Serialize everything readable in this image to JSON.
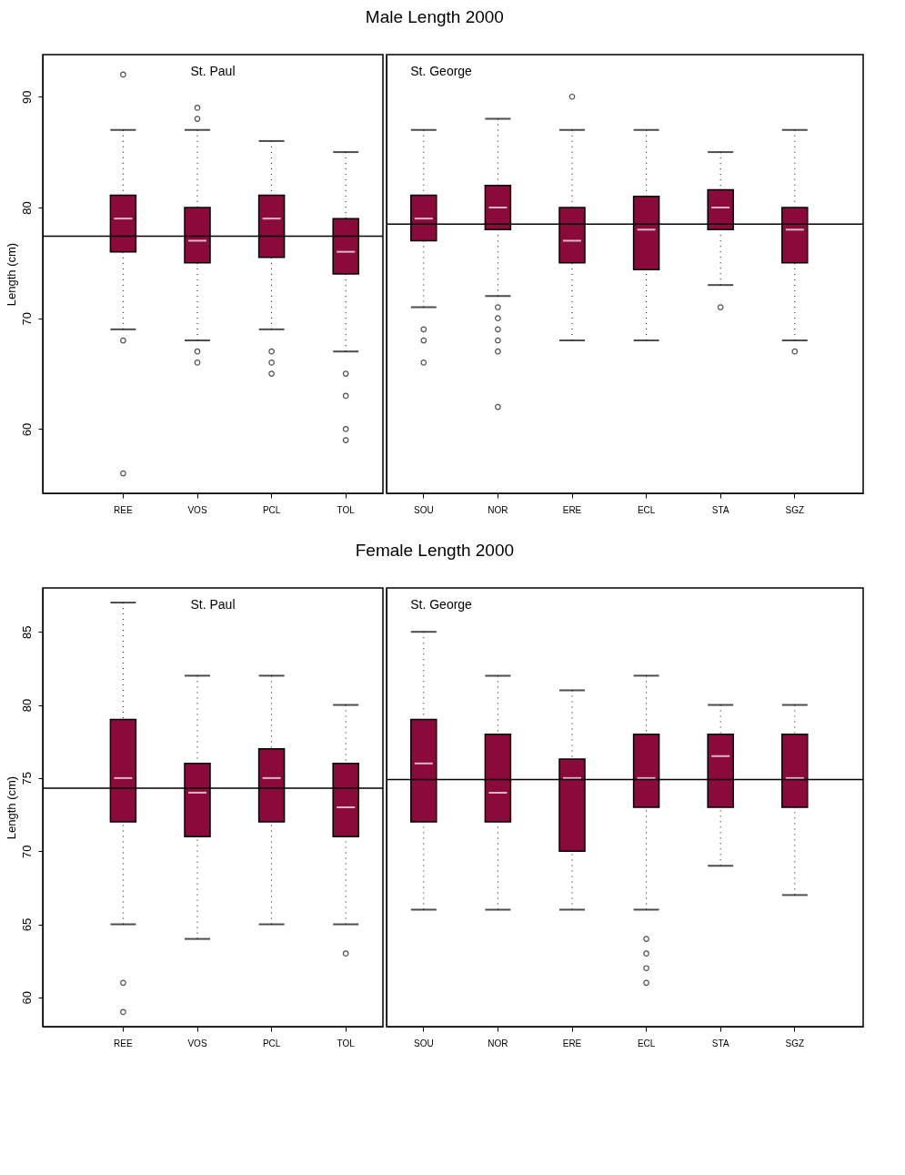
{
  "chart_data": [
    {
      "type": "box",
      "ylabel": "Length (cm)",
      "annotations": [
        "St. Paul"
      ],
      "categories": [
        "REE",
        "VOS",
        "PCL",
        "TOL"
      ],
      "ylim": [
        54.2,
        93.8
      ],
      "yticks": [
        60,
        70,
        80,
        90
      ],
      "grid": false,
      "legend": false,
      "ref_lines": [
        {
          "axis": "y",
          "value": 77.4
        }
      ],
      "series": [
        {
          "color": "#8b0a3c",
          "boxes": [
            {
              "low": 69,
              "q1": 76,
              "median": 79,
              "q3": 81.1,
              "high": 87,
              "outliers": [
                92,
                68,
                56
              ]
            },
            {
              "low": 68,
              "q1": 75,
              "median": 77,
              "q3": 80,
              "high": 87,
              "outliers": [
                89,
                88,
                67,
                66
              ]
            },
            {
              "low": 69,
              "q1": 75.5,
              "median": 79,
              "q3": 81.1,
              "high": 86,
              "outliers": [
                67,
                66,
                65
              ]
            },
            {
              "low": 67,
              "q1": 74,
              "median": 76,
              "q3": 79,
              "high": 85,
              "outliers": [
                65,
                63,
                60,
                59
              ]
            }
          ]
        }
      ]
    },
    {
      "type": "box",
      "title": "Male Length 2000",
      "annotations": [
        "St. George"
      ],
      "categories": [
        "SOU",
        "NOR",
        "ERE",
        "ECL",
        "STA",
        "SGZ"
      ],
      "ylim": [
        54.2,
        93.8
      ],
      "tick_labels": "x",
      "grid": false,
      "legend": false,
      "ref_lines": [
        {
          "axis": "y",
          "value": 78.5
        }
      ],
      "series": [
        {
          "color": "#8b0a3c",
          "boxes": [
            {
              "low": 71,
              "q1": 77,
              "median": 79,
              "q3": 81.1,
              "high": 87,
              "outliers": [
                69,
                68,
                66
              ]
            },
            {
              "low": 72,
              "q1": 78,
              "median": 80,
              "q3": 82,
              "high": 88,
              "outliers": [
                71,
                70,
                69,
                68,
                67,
                62
              ]
            },
            {
              "low": 68,
              "q1": 75,
              "median": 77,
              "q3": 80,
              "high": 87,
              "outliers": [
                90
              ]
            },
            {
              "low": 68,
              "q1": 74.4,
              "median": 78,
              "q3": 81,
              "high": 87
            },
            {
              "low": 73,
              "q1": 78,
              "median": 80,
              "q3": 81.6,
              "high": 85,
              "outliers": [
                71
              ]
            },
            {
              "low": 68,
              "q1": 75,
              "median": 78,
              "q3": 80,
              "high": 87,
              "outliers": [
                67
              ]
            }
          ]
        }
      ]
    },
    {
      "type": "box",
      "ylabel": "Length (cm)",
      "annotations": [
        "St. Paul"
      ],
      "categories": [
        "REE",
        "VOS",
        "PCL",
        "TOL"
      ],
      "ylim": [
        58,
        88
      ],
      "yticks": [
        60,
        65,
        70,
        75,
        80,
        85
      ],
      "grid": false,
      "legend": false,
      "ref_lines": [
        {
          "axis": "y",
          "value": 74.3
        }
      ],
      "series": [
        {
          "color": "#8b0a3c",
          "boxes": [
            {
              "low": 65,
              "q1": 72,
              "median": 75,
              "q3": 79,
              "high": 87,
              "outliers": [
                61,
                59
              ]
            },
            {
              "low": 64,
              "q1": 71,
              "median": 74,
              "q3": 76,
              "high": 82
            },
            {
              "low": 65,
              "q1": 72,
              "median": 75,
              "q3": 77,
              "high": 82
            },
            {
              "low": 65,
              "q1": 71,
              "median": 73,
              "q3": 76,
              "high": 80,
              "outliers": [
                63
              ]
            }
          ]
        }
      ]
    },
    {
      "type": "box",
      "title": "Female Length 2000",
      "annotations": [
        "St. George"
      ],
      "categories": [
        "SOU",
        "NOR",
        "ERE",
        "ECL",
        "STA",
        "SGZ"
      ],
      "ylim": [
        58,
        88
      ],
      "tick_labels": "x",
      "grid": false,
      "legend": false,
      "ref_lines": [
        {
          "axis": "y",
          "value": 74.9
        }
      ],
      "series": [
        {
          "color": "#8b0a3c",
          "boxes": [
            {
              "low": 66,
              "q1": 72,
              "median": 76,
              "q3": 79,
              "high": 85
            },
            {
              "low": 66,
              "q1": 72,
              "median": 74,
              "q3": 78,
              "high": 82
            },
            {
              "low": 66,
              "q1": 70,
              "median": 75,
              "q3": 76.3,
              "high": 81
            },
            {
              "low": 66,
              "q1": 73,
              "median": 75,
              "q3": 78,
              "high": 82,
              "outliers": [
                64,
                63,
                62,
                61
              ]
            },
            {
              "low": 69,
              "q1": 73,
              "median": 76.5,
              "q3": 78,
              "high": 80
            },
            {
              "low": 67,
              "q1": 73,
              "median": 75,
              "q3": 78,
              "high": 80
            }
          ]
        }
      ]
    }
  ]
}
